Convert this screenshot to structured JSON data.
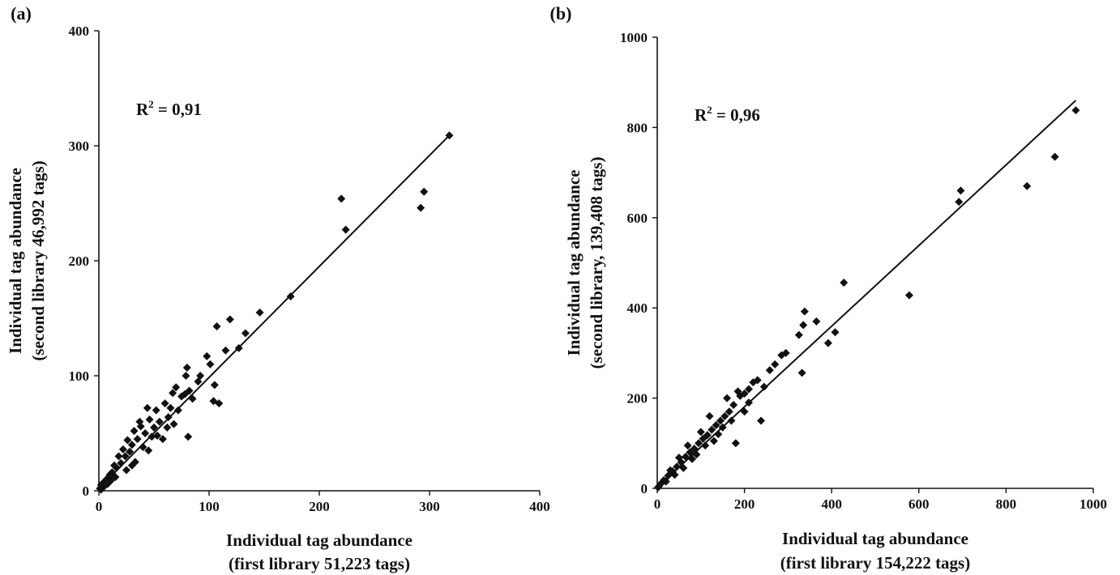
{
  "chart_data": [
    {
      "type": "scatter",
      "panel_label": "(a)",
      "annotation": {
        "base": "R",
        "sup": "2",
        "rest": " = 0,91"
      },
      "xlabel": [
        "Individual tag abundance",
        "(first library 51,223 tags)"
      ],
      "ylabel": [
        "Individual tag abundance",
        "(second library 46,992 tags)"
      ],
      "xlim": [
        0,
        400
      ],
      "ylim": [
        0,
        400
      ],
      "xticks": [
        "0",
        "100",
        "200",
        "300",
        "400"
      ],
      "yticks": [
        "0",
        "100",
        "200",
        "300",
        "400"
      ],
      "trendline": {
        "x": [
          0,
          318
        ],
        "y": [
          2,
          309
        ]
      },
      "grid": false,
      "series": [
        {
          "marker": "diamond",
          "color": "#111111",
          "points": [
            [
              318,
              309
            ],
            [
              220,
              254
            ],
            [
              224,
              227
            ],
            [
              295,
              260
            ],
            [
              292,
              246
            ],
            [
              174,
              169
            ],
            [
              146,
              155
            ],
            [
              133,
              137
            ],
            [
              127,
              124
            ],
            [
              119,
              149
            ],
            [
              115,
              122
            ],
            [
              107,
              143
            ],
            [
              109,
              76
            ],
            [
              104,
              78
            ],
            [
              105,
              92
            ],
            [
              101,
              110
            ],
            [
              98,
              117
            ],
            [
              92,
              100
            ],
            [
              82,
              87
            ],
            [
              80,
              107
            ],
            [
              79,
              100
            ],
            [
              78,
              84
            ],
            [
              81,
              47
            ],
            [
              75,
              82
            ],
            [
              70,
              90
            ],
            [
              67,
              85
            ],
            [
              65,
              72
            ],
            [
              63,
              64
            ],
            [
              60,
              76
            ],
            [
              55,
              60
            ],
            [
              52,
              70
            ],
            [
              50,
              55
            ],
            [
              48,
              47
            ],
            [
              46,
              62
            ],
            [
              42,
              50
            ],
            [
              40,
              38
            ],
            [
              38,
              56
            ],
            [
              35,
              45
            ],
            [
              32,
              52
            ],
            [
              30,
              40
            ],
            [
              28,
              34
            ],
            [
              26,
              44
            ],
            [
              24,
              30
            ],
            [
              22,
              36
            ],
            [
              20,
              24
            ],
            [
              18,
              30
            ],
            [
              16,
              20
            ],
            [
              15,
              12
            ],
            [
              14,
              22
            ],
            [
              12,
              16
            ],
            [
              11,
              9
            ],
            [
              10,
              14
            ],
            [
              9,
              12
            ],
            [
              8,
              6
            ],
            [
              7,
              10
            ],
            [
              6,
              8
            ],
            [
              5,
              4
            ],
            [
              4,
              7
            ],
            [
              3,
              3
            ],
            [
              2,
              5
            ],
            [
              2,
              1
            ],
            [
              1,
              2
            ],
            [
              25,
              18
            ],
            [
              33,
              25
            ],
            [
              45,
              35
            ],
            [
              58,
              45
            ],
            [
              68,
              58
            ],
            [
              85,
              80
            ],
            [
              90,
              95
            ],
            [
              37,
              60
            ],
            [
              44,
              72
            ],
            [
              53,
              48
            ],
            [
              62,
              55
            ],
            [
              72,
              70
            ],
            [
              30,
              22
            ]
          ]
        }
      ]
    },
    {
      "type": "scatter",
      "panel_label": "(b)",
      "annotation": {
        "base": "R",
        "sup": "2",
        "rest": " = 0,96"
      },
      "xlabel": [
        "Individual tag abundance",
        "(first library 154,222 tags)"
      ],
      "ylabel": [
        "Individual tag abundance",
        "(second library, 139,408 tags)"
      ],
      "xlim": [
        0,
        1000
      ],
      "ylim": [
        0,
        1000
      ],
      "xticks": [
        "0",
        "200",
        "400",
        "600",
        "800",
        "1000"
      ],
      "yticks": [
        "0",
        "200",
        "400",
        "600",
        "800",
        "1000"
      ],
      "trendline": {
        "x": [
          0,
          960
        ],
        "y": [
          2,
          860
        ]
      },
      "grid": false,
      "series": [
        {
          "marker": "diamond",
          "color": "#111111",
          "points": [
            [
              960,
              838
            ],
            [
              912,
              735
            ],
            [
              848,
              670
            ],
            [
              696,
              660
            ],
            [
              692,
              635
            ],
            [
              578,
              428
            ],
            [
              428,
              456
            ],
            [
              408,
              346
            ],
            [
              392,
              322
            ],
            [
              365,
              370
            ],
            [
              338,
              392
            ],
            [
              335,
              362
            ],
            [
              332,
              256
            ],
            [
              325,
              340
            ],
            [
              295,
              300
            ],
            [
              285,
              295
            ],
            [
              270,
              275
            ],
            [
              258,
              262
            ],
            [
              245,
              225
            ],
            [
              238,
              150
            ],
            [
              230,
              240
            ],
            [
              220,
              235
            ],
            [
              210,
              220
            ],
            [
              200,
              210
            ],
            [
              190,
              205
            ],
            [
              180,
              100
            ],
            [
              175,
              185
            ],
            [
              165,
              170
            ],
            [
              155,
              160
            ],
            [
              145,
              150
            ],
            [
              135,
              140
            ],
            [
              125,
              130
            ],
            [
              115,
              118
            ],
            [
              105,
              110
            ],
            [
              95,
              100
            ],
            [
              85,
              88
            ],
            [
              75,
              80
            ],
            [
              65,
              70
            ],
            [
              55,
              58
            ],
            [
              45,
              48
            ],
            [
              35,
              38
            ],
            [
              25,
              28
            ],
            [
              15,
              18
            ],
            [
              8,
              10
            ],
            [
              4,
              5
            ],
            [
              2,
              2
            ],
            [
              120,
              160
            ],
            [
              140,
              120
            ],
            [
              160,
              200
            ],
            [
              100,
              125
            ],
            [
              80,
              65
            ],
            [
              60,
              45
            ],
            [
              50,
              68
            ],
            [
              110,
              95
            ],
            [
              130,
              105
            ],
            [
              150,
              135
            ],
            [
              170,
              150
            ],
            [
              200,
              170
            ],
            [
              210,
              190
            ],
            [
              40,
              30
            ],
            [
              30,
              40
            ],
            [
              20,
              15
            ],
            [
              70,
              95
            ],
            [
              90,
              75
            ],
            [
              185,
              215
            ]
          ]
        }
      ]
    }
  ]
}
